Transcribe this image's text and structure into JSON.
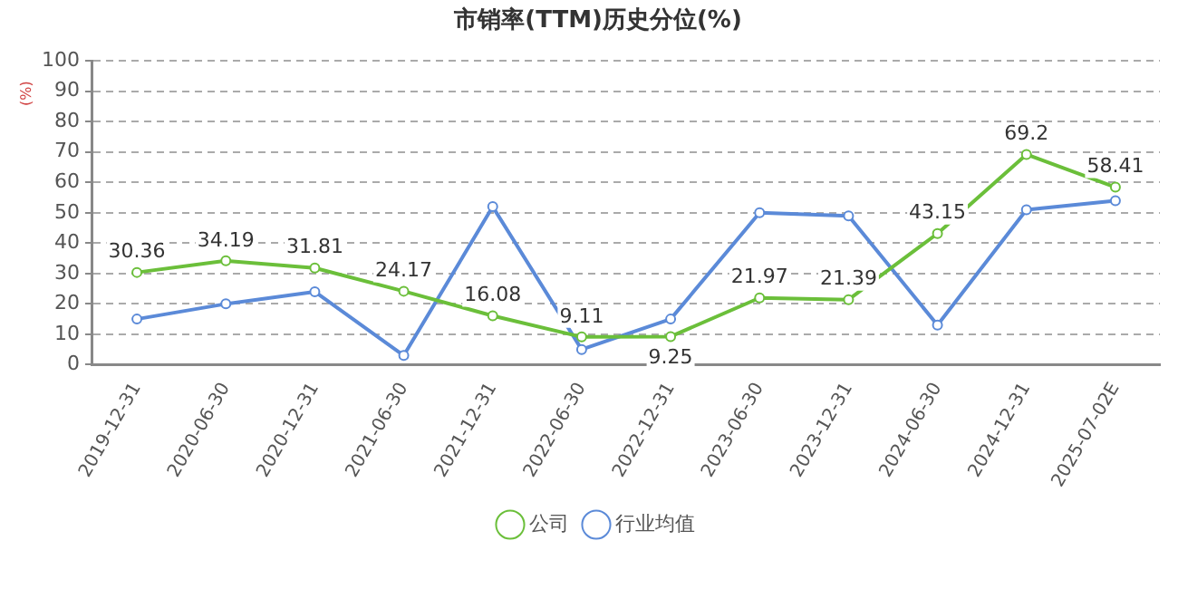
{
  "chart_data": {
    "type": "line",
    "title": "市销率(TTM)历史分位(%)",
    "ylabel": "(%)",
    "categories": [
      "2019-12-31",
      "2020-06-30",
      "2020-12-31",
      "2021-06-30",
      "2021-12-31",
      "2022-06-30",
      "2022-12-31",
      "2023-06-30",
      "2023-12-31",
      "2024-06-30",
      "2024-12-31",
      "2025-07-02E"
    ],
    "series": [
      {
        "name": "公司",
        "color": "#6bbf3a",
        "values": [
          30.36,
          34.19,
          31.81,
          24.17,
          16.08,
          9.11,
          9.25,
          21.97,
          21.39,
          43.15,
          69.2,
          58.41
        ],
        "value_labels": [
          "30.36",
          "34.19",
          "31.81",
          "24.17",
          "16.08",
          "9.11",
          "9.25",
          "21.97",
          "21.39",
          "43.15",
          "69.2",
          "58.41"
        ]
      },
      {
        "name": "行业均值",
        "color": "#5b8ad8",
        "values": [
          15,
          20,
          24,
          3,
          52,
          5,
          15,
          50,
          49,
          13,
          51,
          54
        ]
      }
    ],
    "ylim": [
      0,
      100
    ],
    "yticks": [
      0,
      10,
      20,
      30,
      40,
      50,
      60,
      70,
      80,
      90,
      100
    ],
    "grid": "y",
    "legend": "bottom",
    "marker": "circle",
    "line_style": "solid"
  }
}
